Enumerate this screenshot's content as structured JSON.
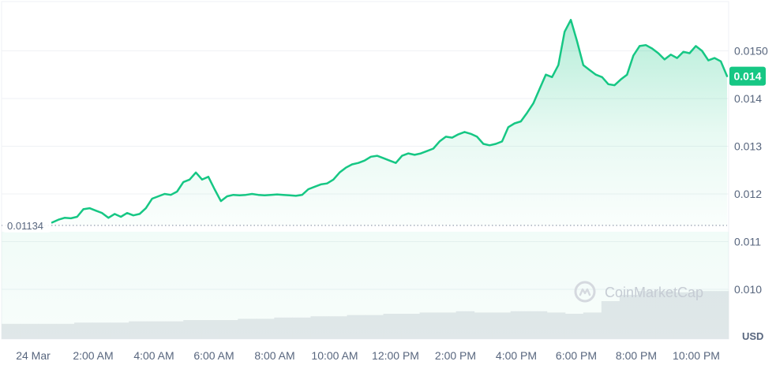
{
  "chart_data": {
    "type": "area",
    "x_ticks": [
      "24 Mar",
      "2:00 AM",
      "4:00 AM",
      "6:00 AM",
      "8:00 AM",
      "10:00 AM",
      "12:00 PM",
      "2:00 PM",
      "4:00 PM",
      "6:00 PM",
      "8:00 PM",
      "10:00 PM"
    ],
    "y_ticks": [
      "0.0150",
      "0.014",
      "0.013",
      "0.012",
      "0.011",
      "0.010"
    ],
    "y_tick_values": [
      0.015,
      0.014,
      0.013,
      0.012,
      0.011,
      0.01
    ],
    "ylim": [
      0.0094,
      0.016
    ],
    "y_unit": "USD",
    "reference_line": {
      "label": "0.01134",
      "value": 0.01134
    },
    "current_price": {
      "label": "0.014",
      "value": 0.01447
    },
    "watermark": "CoinMarketCap",
    "colors": {
      "line": "#16c784",
      "fill": "#16c784",
      "grid": "#eff2f5",
      "text": "#58667e",
      "badge": "#16c784",
      "volume": "#e6e8ec"
    },
    "series": [
      {
        "values": [
          0.0114,
          0.01146,
          0.0115,
          0.01149,
          0.01152,
          0.01168,
          0.0117,
          0.01165,
          0.0116,
          0.0115,
          0.01158,
          0.01152,
          0.0116,
          0.01155,
          0.01158,
          0.0117,
          0.0119,
          0.01195,
          0.012,
          0.01198,
          0.01205,
          0.01225,
          0.0123,
          0.01245,
          0.0123,
          0.01236,
          0.0121,
          0.01185,
          0.01195,
          0.01198,
          0.01197,
          0.01198,
          0.012,
          0.01198,
          0.01197,
          0.01198,
          0.01199,
          0.01198,
          0.01197,
          0.01196,
          0.01198,
          0.0121,
          0.01215,
          0.0122,
          0.01222,
          0.0123,
          0.01245,
          0.01255,
          0.01262,
          0.01265,
          0.0127,
          0.01278,
          0.0128,
          0.01275,
          0.0127,
          0.01265,
          0.0128,
          0.01285,
          0.01282,
          0.01285,
          0.0129,
          0.01295,
          0.0131,
          0.0132,
          0.01318,
          0.01325,
          0.0133,
          0.01326,
          0.0132,
          0.01305,
          0.01302,
          0.01305,
          0.0131,
          0.0134,
          0.01348,
          0.01352,
          0.0137,
          0.0139,
          0.0142,
          0.0145,
          0.01445,
          0.0147,
          0.0154,
          0.01565,
          0.0152,
          0.0147,
          0.0146,
          0.0145,
          0.01445,
          0.0143,
          0.01428,
          0.0144,
          0.0145,
          0.0149,
          0.0151,
          0.01512,
          0.01505,
          0.01495,
          0.01482,
          0.01492,
          0.01485,
          0.01498,
          0.01495,
          0.0151,
          0.015,
          0.0148,
          0.01485,
          0.01478,
          0.01447
        ]
      }
    ],
    "volume": [
      0.12,
      0.12,
      0.12,
      0.12,
      0.13,
      0.13,
      0.13,
      0.14,
      0.14,
      0.14,
      0.15,
      0.15,
      0.15,
      0.16,
      0.16,
      0.17,
      0.17,
      0.18,
      0.18,
      0.19,
      0.19,
      0.2,
      0.2,
      0.21,
      0.21,
      0.22,
      0.21,
      0.21,
      0.22,
      0.22,
      0.21,
      0.2,
      0.21,
      0.3,
      0.35,
      0.38,
      0.38,
      0.37,
      0.38,
      0.38
    ]
  }
}
